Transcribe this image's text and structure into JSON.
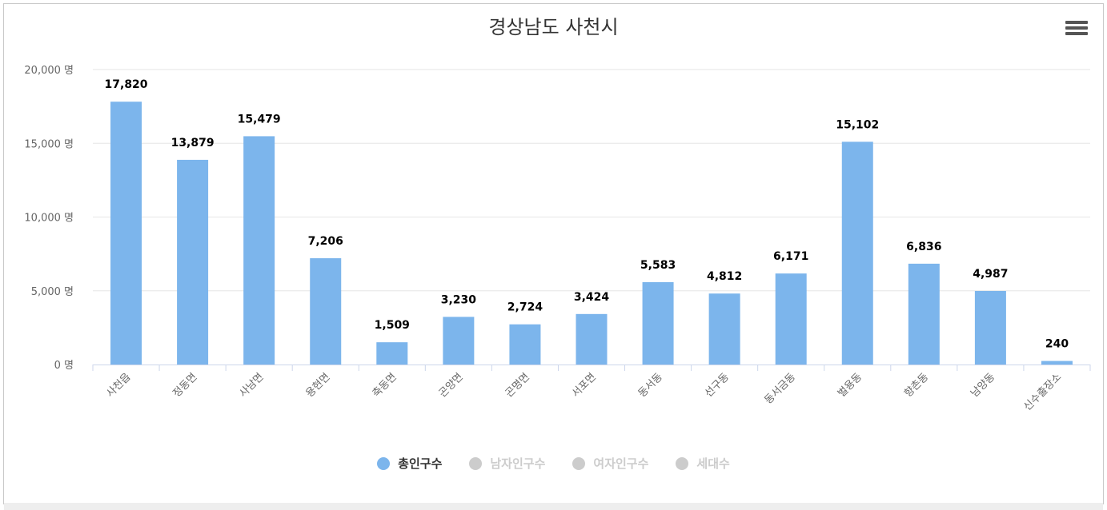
{
  "title": "경상남도 사천시",
  "chart_data": {
    "type": "bar",
    "title": "경상남도 사천시",
    "categories": [
      "사천읍",
      "정동면",
      "사남면",
      "용현면",
      "축동면",
      "곤양면",
      "곤명면",
      "서포면",
      "동서동",
      "선구동",
      "동서금동",
      "벌용동",
      "향촌동",
      "남양동",
      "신수출장소"
    ],
    "series": [
      {
        "name": "총인구수",
        "values": [
          17820,
          13879,
          15479,
          7206,
          1509,
          3230,
          2724,
          3424,
          5583,
          4812,
          6171,
          15102,
          6836,
          4987,
          240
        ],
        "active": true
      }
    ],
    "data_labels": [
      "17,820",
      "13,879",
      "15,479",
      "7,206",
      "1,509",
      "3,230",
      "2,724",
      "3,424",
      "5,583",
      "4,812",
      "6,171",
      "15,102",
      "6,836",
      "4,987",
      "240"
    ],
    "yticks": [
      "0 명",
      "5,000 명",
      "10,000 명",
      "15,000 명",
      "20,000 명"
    ],
    "ylim": [
      0,
      20000
    ],
    "grid": true,
    "legend_position": "bottom"
  },
  "legend": [
    {
      "label": "총인구수",
      "active": true,
      "color": "#7cb5ec"
    },
    {
      "label": "남자인구수",
      "active": false,
      "color": "#cccccc"
    },
    {
      "label": "여자인구수",
      "active": false,
      "color": "#cccccc"
    },
    {
      "label": "세대수",
      "active": false,
      "color": "#cccccc"
    }
  ],
  "colors": {
    "bar": "#7cb5ec",
    "grid": "#e6e6e6",
    "axis": "#ccd6eb",
    "label": "#666666",
    "data_label": "#000000",
    "legend_active": "#333333",
    "legend_inactive": "#cccccc"
  },
  "icons": {
    "menu": "hamburger-menu-icon"
  }
}
